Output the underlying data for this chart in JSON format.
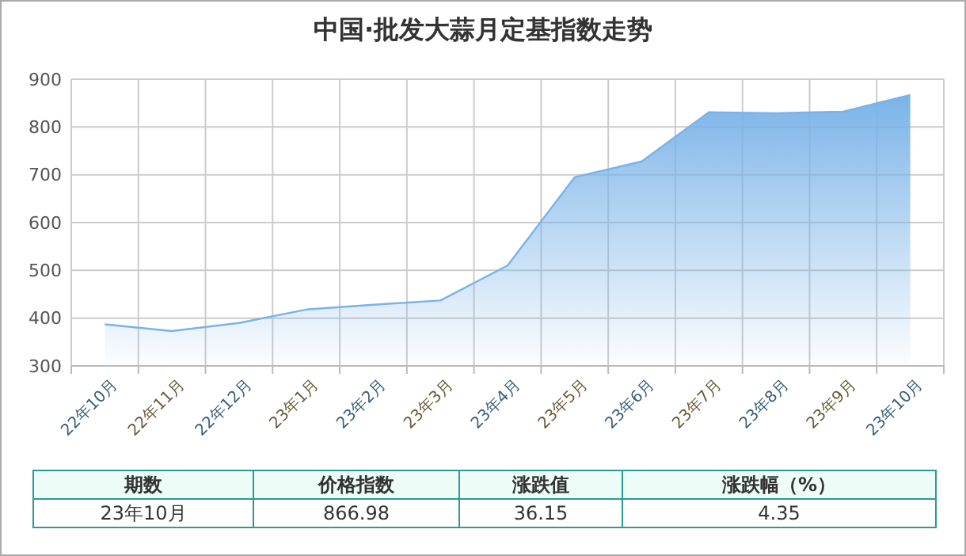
{
  "chart_data": {
    "type": "area",
    "title": "中国·批发大蒜月定基指数走势",
    "categories": [
      "22年10月",
      "22年11月",
      "22年12月",
      "23年1月",
      "23年2月",
      "23年3月",
      "23年4月",
      "23年5月",
      "23年6月",
      "23年7月",
      "23年8月",
      "23年9月",
      "23年10月"
    ],
    "series": [
      {
        "color": "#7ab3e8",
        "values": [
          387,
          373,
          390,
          418,
          428,
          437,
          510,
          695,
          728,
          831,
          829,
          832,
          866.98
        ]
      }
    ],
    "ylim": [
      300,
      900
    ],
    "yticks": [
      300,
      400,
      500,
      600,
      700,
      800,
      900
    ],
    "grid": true,
    "annotations": [
      "期数",
      "价格指数",
      "涨跌值",
      "涨跌幅（%）",
      "23年10月",
      "866.98",
      "36.15",
      "4.35"
    ]
  }
}
